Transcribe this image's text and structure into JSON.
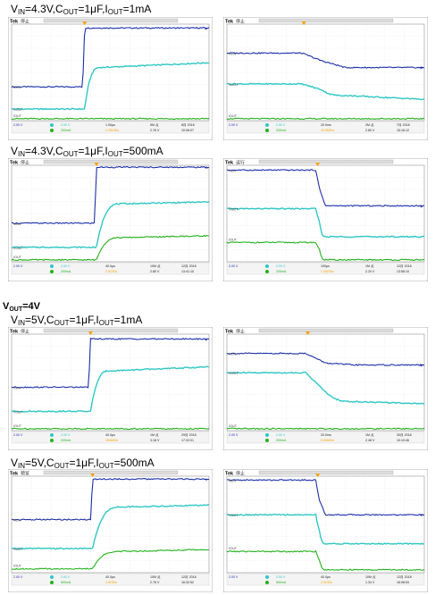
{
  "captions": [
    {
      "v": "IN",
      "vval": "=4.3V,C",
      "c": "OUT",
      "cval": "=1μF,I",
      "i": "OUT",
      "ival": "=1mA"
    },
    {
      "v": "IN",
      "vval": "=4.3V,C",
      "c": "OUT",
      "cval": "=1μF,I",
      "i": "OUT",
      "ival": "=500mA"
    },
    {
      "v": "IN",
      "vval": "=5V,C",
      "c": "OUT",
      "cval": "=1μF,I",
      "i": "OUT",
      "ival": "=1mA"
    },
    {
      "v": "IN",
      "vval": "=5V,C",
      "c": "OUT",
      "cval": "=1μF,I",
      "i": "OUT",
      "ival": "=500mA"
    }
  ],
  "vout_heading": {
    "main": "V",
    "sub": "OUT",
    "val": "=4V"
  },
  "colors": {
    "ch1": "#1c2fa8",
    "ch2": "#2fc7c4",
    "ch4": "#22b21a",
    "bg": "#ffffff",
    "grid": "#c8c8c8",
    "frame": "#7a7a7a",
    "bar": "#dcdcdc",
    "marker": "#f2a100"
  },
  "scopes": [
    {
      "brand": "Tek",
      "mode": "停止",
      "kind": "on_light",
      "labels": [
        "VEN",
        "VOUT",
        "IOUT"
      ],
      "footer": [
        "2.00 V",
        "2.00 V",
        "200mA",
        "1.00μs",
        "1.25GS/s",
        "5M 点",
        "2.76 V",
        "8月 2018",
        "10:06:07"
      ]
    },
    {
      "brand": "Tek",
      "mode": "停止",
      "kind": "off_light",
      "labels": [
        "VEN",
        "VOUT",
        "IOUT"
      ],
      "footer": [
        "2.00 V",
        "2.00 V",
        "200mA",
        "20.0ms",
        "10.0MS/s",
        "2M 点",
        "2.80 V",
        "7月 2018",
        "15:16:12"
      ]
    },
    {
      "brand": "Tek",
      "mode": "停止",
      "kind": "on_heavy",
      "labels": [
        "VEN",
        "VOUT",
        "IOUT"
      ],
      "footer": [
        "2.00 V",
        "2.00 V",
        "200mA",
        "40.0μs",
        "2.5GS/s",
        "10M 点",
        "2.80 V",
        "12月 2018",
        "13:41:10"
      ]
    },
    {
      "brand": "Tek",
      "mode": "运行",
      "kind": "off_heavy",
      "labels": [
        "VEN",
        "VOUT",
        "IOUT"
      ],
      "footer": [
        "2.00 V",
        "2.00 V",
        "200mA",
        "100μs",
        "1.25GS/s",
        "1M 点",
        "2.20 V",
        "12月 2018",
        "13:58:10"
      ]
    },
    {
      "brand": "Tek",
      "mode": "停止",
      "kind": "on_light",
      "labels": [
        "VEN",
        "VOUT",
        "IOUT"
      ],
      "footer": [
        "2.00 V",
        "2.00 V",
        "200mA",
        "40.0μs",
        "250MS/s",
        "1M 点",
        "3.18 V",
        "29月 2018",
        "17:32:01"
      ]
    },
    {
      "brand": "Tek",
      "mode": "停止",
      "kind": "off_light",
      "labels": [
        "VEN",
        "VOUT",
        "IOUT"
      ],
      "footer": [
        "2.00 V",
        "2.00 V",
        "200mA",
        "20.0ms",
        "5.00MS/s",
        "1M 点",
        "2.48 V",
        "30月 2018",
        "10:10:46"
      ]
    },
    {
      "brand": "Tek",
      "mode": "预览",
      "kind": "on_heavy",
      "labels": [
        "VEN",
        "VOUT",
        "IOUT"
      ],
      "footer": [
        "2.00 V",
        "2.00 V",
        "500mA",
        "40.0μs",
        "2.5GS/s",
        "10M 点",
        "2.76 V",
        "12月 2018",
        "16:32:52"
      ]
    },
    {
      "brand": "Tek",
      "mode": "停止",
      "kind": "off_heavy",
      "labels": [
        "VEN",
        "VOUT",
        "IOUT"
      ],
      "footer": [
        "2.00 V",
        "2.00 V",
        "500mA",
        "40.0μs",
        "2.5GS/s",
        "10M 点",
        "1.34 V",
        "12月 2018",
        "16:08:53"
      ]
    }
  ],
  "chart_data": [
    {
      "type": "line",
      "caption": "VIN=4.3V,COUT=1μF,IOUT=1mA",
      "panel": "left",
      "x_norm": [
        0,
        0.36,
        0.37,
        0.45,
        1
      ],
      "series": [
        {
          "name": "VEN",
          "values": [
            0.35,
            0.35,
            0.96,
            0.96,
            0.96
          ]
        },
        {
          "name": "VOUT",
          "values": [
            0.12,
            0.12,
            0.12,
            0.55,
            0.6
          ]
        },
        {
          "name": "IOUT",
          "values": [
            0.02,
            0.02,
            0.02,
            0.02,
            0.02
          ]
        }
      ]
    },
    {
      "type": "line",
      "caption": "VIN=4.3V,COUT=1μF,IOUT=1mA",
      "panel": "right",
      "x_norm": [
        0,
        0.38,
        0.48,
        0.6,
        1
      ],
      "series": [
        {
          "name": "VEN",
          "values": [
            0.7,
            0.7,
            0.62,
            0.55,
            0.55
          ]
        },
        {
          "name": "VOUT",
          "values": [
            0.38,
            0.38,
            0.32,
            0.26,
            0.22
          ]
        },
        {
          "name": "IOUT",
          "values": [
            0.02,
            0.02,
            0.02,
            0.02,
            0.02
          ]
        }
      ]
    },
    {
      "type": "line",
      "caption": "VIN=4.3V,COUT=1μF,IOUT=500mA",
      "panel": "left",
      "x_norm": [
        0,
        0.42,
        0.43,
        0.55,
        1
      ],
      "series": [
        {
          "name": "VEN",
          "values": [
            0.4,
            0.4,
            0.98,
            0.98,
            0.98
          ]
        },
        {
          "name": "VOUT",
          "values": [
            0.15,
            0.15,
            0.15,
            0.6,
            0.62
          ]
        },
        {
          "name": "IOUT",
          "values": [
            0.02,
            0.02,
            0.02,
            0.25,
            0.27
          ]
        }
      ]
    },
    {
      "type": "line",
      "caption": "VIN=4.3V,COUT=1μF,IOUT=500mA",
      "panel": "right",
      "x_norm": [
        0,
        0.45,
        0.47,
        0.5,
        1
      ],
      "series": [
        {
          "name": "VEN",
          "values": [
            0.95,
            0.95,
            0.75,
            0.58,
            0.58
          ]
        },
        {
          "name": "VOUT",
          "values": [
            0.55,
            0.55,
            0.4,
            0.26,
            0.26
          ]
        },
        {
          "name": "IOUT",
          "values": [
            0.2,
            0.2,
            0.12,
            0.02,
            0.02
          ]
        }
      ]
    },
    {
      "type": "line",
      "caption": "VIN=5V,COUT=1μF,IOUT=1mA",
      "panel": "left",
      "x_norm": [
        0,
        0.39,
        0.4,
        0.5,
        1
      ],
      "series": [
        {
          "name": "VEN",
          "values": [
            0.45,
            0.45,
            0.95,
            0.95,
            0.95
          ]
        },
        {
          "name": "VOUT",
          "values": [
            0.2,
            0.2,
            0.2,
            0.62,
            0.66
          ]
        },
        {
          "name": "IOUT",
          "values": [
            0.02,
            0.02,
            0.02,
            0.02,
            0.02
          ]
        }
      ]
    },
    {
      "type": "line",
      "caption": "VIN=5V,COUT=1μF,IOUT=1mA",
      "panel": "right",
      "x_norm": [
        0,
        0.4,
        0.5,
        0.65,
        1
      ],
      "series": [
        {
          "name": "VEN",
          "values": [
            0.8,
            0.8,
            0.7,
            0.68,
            0.68
          ]
        },
        {
          "name": "VOUT",
          "values": [
            0.6,
            0.6,
            0.4,
            0.3,
            0.28
          ]
        },
        {
          "name": "IOUT",
          "values": [
            0.02,
            0.02,
            0.02,
            0.02,
            0.02
          ]
        }
      ]
    },
    {
      "type": "line",
      "caption": "VIN=5V,COUT=1μF,IOUT=500mA",
      "panel": "left",
      "x_norm": [
        0,
        0.4,
        0.41,
        0.55,
        1
      ],
      "series": [
        {
          "name": "VEN",
          "values": [
            0.55,
            0.55,
            0.97,
            0.97,
            0.97
          ]
        },
        {
          "name": "VOUT",
          "values": [
            0.25,
            0.25,
            0.25,
            0.68,
            0.7
          ]
        },
        {
          "name": "IOUT",
          "values": [
            0.04,
            0.04,
            0.04,
            0.22,
            0.24
          ]
        }
      ]
    },
    {
      "type": "line",
      "caption": "VIN=5V,COUT=1μF,IOUT=500mA",
      "panel": "right",
      "x_norm": [
        0,
        0.45,
        0.47,
        0.5,
        1
      ],
      "series": [
        {
          "name": "VEN",
          "values": [
            0.96,
            0.96,
            0.74,
            0.6,
            0.6
          ]
        },
        {
          "name": "VOUT",
          "values": [
            0.6,
            0.6,
            0.42,
            0.3,
            0.3
          ]
        },
        {
          "name": "IOUT",
          "values": [
            0.22,
            0.22,
            0.12,
            0.03,
            0.03
          ]
        }
      ]
    }
  ]
}
